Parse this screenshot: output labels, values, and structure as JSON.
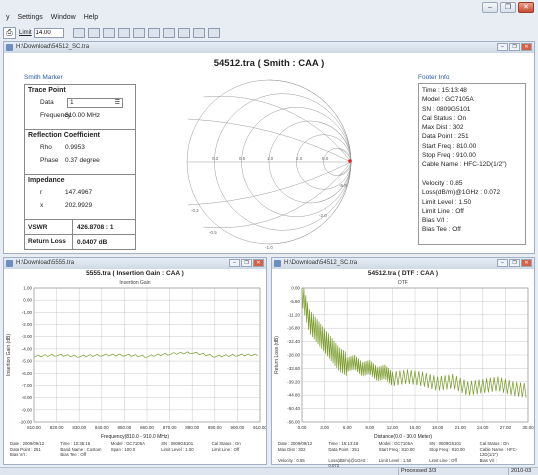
{
  "window": {
    "min": "–",
    "restore": "❐",
    "close": "✕"
  },
  "menu": [
    "y",
    "Settings",
    "Window",
    "Help"
  ],
  "toolbar": {
    "limit_label": "Limit",
    "limit_value": "14.00"
  },
  "smith_window": {
    "title": "H:\\Download\\54512_SC.tra",
    "plot_title": "54512.tra ( Smith : CAA )",
    "marker_label": "Smith Marker",
    "trace_point": {
      "heading": "Trace Point",
      "data_label": "Data",
      "data_value": "1",
      "freq_label": "Frequency",
      "freq_value": "810.00 MHz"
    },
    "reflection": {
      "heading": "Reflection Coefficient",
      "rho_label": "Rho",
      "rho_value": "0.9953",
      "phase_label": "Phase",
      "phase_value": "0.37 degree"
    },
    "impedance": {
      "heading": "Impedance",
      "r_label": "r",
      "r_value": "147.4967",
      "x_label": "x",
      "x_value": "202.9929"
    },
    "vswr": {
      "label": "VSWR",
      "value": "426.8708 : 1"
    },
    "return_loss": {
      "label": "Return Loss",
      "value": "0.0407 dB"
    },
    "footer_label": "Footer Info",
    "footer": [
      "Time : 15:13:48",
      "Model : GC7105A",
      "SN : 0809G5101",
      "Cal Status : On",
      "Max Dist : 302",
      "Data Point : 251",
      "Start Freq : 810.00",
      "Stop Freq : 910.00",
      "Cable Name : HFC-12D(1/2\")",
      "",
      "Velocity : 0.85",
      "Loss(dB/m)@1GHz : 0.072",
      "Limit Level : 1.50",
      "Limit Line : Off",
      "Bias V/I :",
      "Bias Tee : Off"
    ],
    "smith_labels": [
      "0.2",
      "0.5",
      "1.0",
      "2.0",
      "5.0",
      "-0.2",
      "-0.5",
      "-1.0",
      "-2.0",
      "-5.0"
    ]
  },
  "il_window": {
    "title": "H:\\Download\\5555.tra",
    "plot_title": "5555.tra ( Insertion Gain : CAA )",
    "subtitle": "Insertion Gain",
    "ylabel": "Insertion Gain (dB)",
    "xlabel": "Frequency(810.0 - 910.0 MHz)",
    "footer": [
      "Date : 2009/09/12",
      "Time : 10:35:16",
      "Model : GC7105A",
      "SN : 0809G5101",
      "Cal Status : On",
      "Data Point : 251",
      "Band Name : Custom",
      "Span : 100.0",
      "Limit Level : 1.00",
      "Limit Line : Off",
      "Bias V/I :",
      "Bias Tee : Off"
    ]
  },
  "dtf_window": {
    "title": "H:\\Download\\54512_SC.tra",
    "plot_title": "54512.tra ( DTF : CAA )",
    "subtitle": "DTF",
    "ylabel": "Return Loss (dB)",
    "xlabel": "Distance(0.0 - 30.0 Meter)",
    "footer": [
      "Date : 2009/09/12",
      "Time : 15:13:48",
      "Model : GC7105A",
      "SN : 0809G5101",
      "Cal Status : On",
      "Max Dist : 302",
      "Data Point : 251",
      "Start Freq : 810.00",
      "Stop Freq : 910.00",
      "Cable Name : HFC-12D(1/2\")",
      "Velocity : 0.85",
      "Loss(dB/m)@1GHz : 0.072",
      "Limit Level : 1.50",
      "Limit Line : Off",
      "Bias V/I :"
    ]
  },
  "status": {
    "cell1": "Processed 3/3",
    "cell2": "2010-03"
  },
  "chart_data": [
    {
      "type": "line",
      "title": "5555.tra ( Insertion Gain : CAA )",
      "xlabel": "Frequency(810.0 - 910.0 MHz)",
      "ylabel": "Insertion Gain (dB)",
      "x_ticks": [
        "810.00",
        "820.00",
        "830.00",
        "840.00",
        "850.00",
        "860.00",
        "870.00",
        "880.00",
        "890.00",
        "900.00",
        "910.00"
      ],
      "y_ticks": [
        "1.00",
        "0.00",
        "-1.00",
        "-2.00",
        "-3.00",
        "-4.00",
        "-5.00",
        "-6.00",
        "-7.00",
        "-8.00",
        "-9.00",
        "-10.00"
      ],
      "xlim": [
        810,
        910
      ],
      "ylim": [
        -10,
        1
      ],
      "series": [
        {
          "color": "#7a9a2a",
          "x": [
            810,
            820,
            830,
            840,
            850,
            860,
            870,
            880,
            890,
            900,
            910
          ],
          "y": [
            -4.6,
            -4.5,
            -4.6,
            -4.5,
            -4.5,
            -4.6,
            -4.4,
            -4.3,
            -4.6,
            -4.5,
            -4.5
          ]
        }
      ]
    },
    {
      "type": "line",
      "title": "54512.tra ( DTF : CAA )",
      "xlabel": "Distance(0.0 - 30.0 Meter)",
      "ylabel": "Return Loss (dB)",
      "x_ticks": [
        "0.00",
        "3.00",
        "6.00",
        "9.00",
        "12.00",
        "15.00",
        "18.00",
        "21.00",
        "24.00",
        "27.00",
        "30.00"
      ],
      "y_ticks": [
        "0.00",
        "-5.60",
        "-11.20",
        "-16.80",
        "-22.40",
        "-28.00",
        "-33.60",
        "-39.20",
        "-44.80",
        "-50.40",
        "-56.00"
      ],
      "xlim": [
        0,
        30
      ],
      "ylim": [
        -56,
        0
      ],
      "series": [
        {
          "color": "#7a9a2a",
          "x": [
            0,
            1,
            2,
            3,
            4,
            5,
            6,
            7,
            8,
            9,
            10,
            11,
            12,
            14,
            16,
            18,
            20,
            22,
            24,
            26,
            28,
            30
          ],
          "y": [
            -2,
            -14,
            -18,
            -22,
            -26,
            -30,
            -32,
            -31,
            -34,
            -33,
            -36,
            -35,
            -38,
            -37,
            -38,
            -40,
            -39,
            -42,
            -41,
            -40,
            -42,
            -43
          ]
        }
      ]
    }
  ]
}
